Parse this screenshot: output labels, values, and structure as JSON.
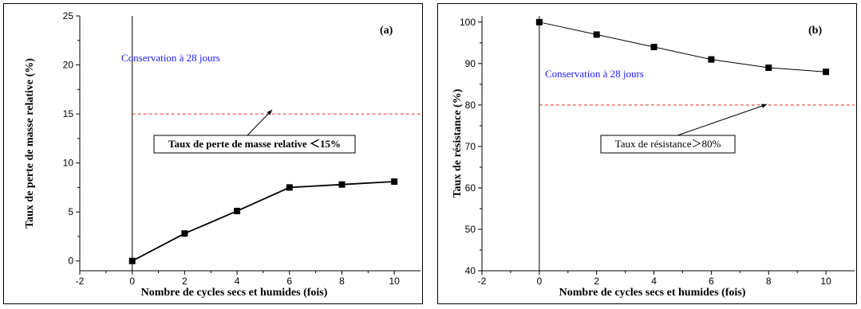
{
  "chart_data": [
    {
      "type": "line",
      "panel_label": "(a)",
      "xlabel": "Nombre de cycles secs et humides (fois)",
      "ylabel": "Taux de perte de masse relative (%)",
      "xlim": [
        -2,
        11
      ],
      "ylim": [
        -1,
        25
      ],
      "xticks": [
        -2,
        0,
        2,
        4,
        6,
        8,
        10
      ],
      "yticks": [
        0,
        5,
        10,
        15,
        20,
        25
      ],
      "x": [
        0,
        2,
        4,
        6,
        8,
        10
      ],
      "series": [
        {
          "values": [
            0,
            2.8,
            5.1,
            7.5,
            7.8,
            8.1
          ]
        }
      ],
      "reference_line": {
        "y": 15,
        "color": "#e03030"
      },
      "note": "Conservation à 28 jours",
      "annotation": "Taux de perte de masse relative ＜15%",
      "grid": false,
      "colors": {
        "series": "#000000",
        "note": "#1a1aff",
        "reference": "#e03030"
      }
    },
    {
      "type": "line",
      "panel_label": "(b)",
      "xlabel": "Nombre de cycles secs et humides (fois)",
      "ylabel": "Taux de résistance (%)",
      "xlim": [
        -2,
        11
      ],
      "ylim": [
        40,
        101.5
      ],
      "xticks": [
        -2,
        0,
        2,
        4,
        6,
        8,
        10
      ],
      "yticks": [
        40,
        50,
        60,
        70,
        80,
        90,
        100
      ],
      "x": [
        0,
        2,
        4,
        6,
        8,
        10
      ],
      "series": [
        {
          "values": [
            100,
            97,
            94,
            91,
            89,
            88
          ]
        }
      ],
      "reference_line": {
        "y": 80,
        "color": "#e03030"
      },
      "note": "Conservation à  28 jours",
      "annotation": "Taux de résistance＞80%",
      "grid": false,
      "colors": {
        "series": "#000000",
        "note": "#1a1aff",
        "reference": "#e03030"
      }
    }
  ]
}
